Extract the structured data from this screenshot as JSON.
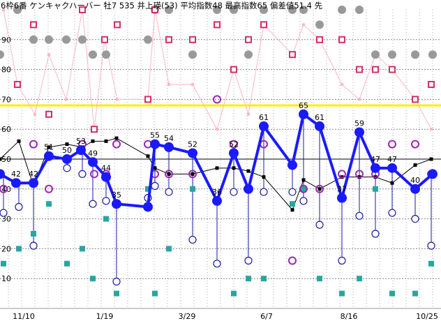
{
  "header": "6枠6番 ケンキャクハーバー 牡7 535 井上瑛(53) 平均指数48 最高指数65 偏差値51.4 先",
  "chart_data": {
    "type": "line",
    "title": "6枠6番 ケンキャクハーバー 牡7 535 井上瑛(53) 平均指数48 最高指数65 偏差値51.4 先",
    "ylim": [
      0,
      100
    ],
    "y_ticks": [
      10,
      20,
      30,
      40,
      50,
      60,
      70,
      80,
      90
    ],
    "x_tick_labels": [
      "11/10",
      "1/19",
      "3/29",
      "6/7",
      "8/16",
      "10/25"
    ],
    "reference_line": 68,
    "grid": true,
    "colors": {
      "main": "#1a1aff",
      "black": "#000000",
      "pink_square": "#d0306a",
      "gray_circle": "#999999",
      "teal_square": "#2aa5a0",
      "purple_circle": "#9c27b0",
      "open_circle": "#1a1aa0",
      "pink_line": "#ffb6c1",
      "yellow_line": "#ffee00"
    },
    "series": [
      {
        "kind": "main_blue",
        "x": [
          0,
          23,
          48,
          70,
          96,
          116,
          133,
          152,
          167,
          212,
          222,
          242,
          276,
          311,
          335,
          356,
          378,
          419,
          435,
          458,
          490,
          515,
          538,
          562,
          595,
          620
        ],
        "y": [
          45,
          42,
          42,
          51,
          50,
          53,
          49,
          44,
          35,
          34,
          55,
          54,
          52,
          36,
          52,
          40,
          61,
          48,
          65,
          61,
          37,
          59,
          47,
          47,
          40,
          45
        ],
        "labels": [
          "",
          "42",
          "42",
          "51",
          "50",
          "53",
          "49",
          "44",
          "35",
          "",
          "55",
          "54",
          "52",
          "36",
          "52",
          "",
          "61",
          "",
          "65",
          "61",
          "37",
          "59",
          "47",
          "47",
          "40",
          ""
        ]
      },
      {
        "kind": "black_line",
        "x": [
          0,
          27,
          48,
          70,
          96,
          118,
          133,
          152,
          167,
          212,
          222,
          242,
          276,
          311,
          335,
          356,
          378,
          419,
          435,
          458,
          490,
          515,
          538,
          562,
          595,
          618
        ],
        "y": [
          50,
          56,
          41,
          54,
          55,
          54,
          56,
          56,
          57,
          51,
          47,
          45,
          45,
          47,
          47,
          46,
          44,
          33,
          43,
          40,
          44,
          44,
          44,
          42,
          48,
          50
        ]
      },
      {
        "kind": "pink_line",
        "x": [
          5,
          25,
          50,
          70,
          95,
          118,
          135,
          150,
          168,
          212,
          222,
          242,
          276,
          311,
          335,
          356,
          378,
          419,
          435,
          458,
          490,
          515,
          538,
          562,
          595,
          618
        ],
        "y": [
          100,
          75,
          65,
          85,
          70,
          100,
          60,
          90,
          70,
          70,
          100,
          75,
          75,
          60,
          80,
          65,
          95,
          85,
          95,
          90,
          75,
          70,
          85,
          80,
          70,
          60
        ]
      },
      {
        "kind": "pink_square",
        "x": [
          25,
          48,
          70,
          118,
          135,
          150,
          168,
          212,
          222,
          242,
          276,
          311,
          335,
          356,
          378,
          419,
          458,
          490,
          515,
          538,
          562,
          595,
          618
        ],
        "y": [
          75,
          95,
          65,
          100,
          60,
          90,
          95,
          70,
          100,
          90,
          90,
          95,
          80,
          90,
          95,
          85,
          90,
          90,
          80,
          80,
          80,
          70,
          75
        ]
      },
      {
        "kind": "gray_circle",
        "x": [
          0,
          25,
          48,
          70,
          95,
          118,
          133,
          152,
          212,
          222,
          242,
          276,
          311,
          335,
          356,
          378,
          419,
          435,
          458,
          490,
          515,
          538,
          562,
          595,
          620
        ],
        "y": [
          85,
          100,
          90,
          90,
          90,
          90,
          85,
          85,
          90,
          100,
          100,
          85,
          100,
          100,
          85,
          100,
          100,
          100,
          95,
          100,
          100,
          85,
          85,
          85,
          85
        ]
      },
      {
        "kind": "teal_square",
        "x": [
          5,
          27,
          48,
          70,
          96,
          118,
          133,
          152,
          167,
          212,
          222,
          242,
          276,
          311,
          335,
          356,
          378,
          419,
          435,
          458,
          490,
          515,
          538,
          562,
          595,
          618
        ],
        "y": [
          15,
          20,
          25,
          35,
          15,
          20,
          10,
          30,
          5,
          40,
          5,
          20,
          40,
          15,
          5,
          10,
          10,
          35,
          40,
          10,
          5,
          10,
          40,
          5,
          5,
          15
        ]
      },
      {
        "kind": "purple_circle",
        "x": [
          5,
          48,
          70,
          96,
          118,
          135,
          152,
          167,
          212,
          222,
          242,
          276,
          311,
          335,
          356,
          378,
          419,
          435,
          458,
          490,
          515,
          538,
          562,
          595,
          618
        ],
        "y": [
          40,
          55,
          40,
          50,
          55,
          45,
          45,
          55,
          55,
          45,
          45,
          45,
          70,
          55,
          40,
          55,
          16,
          40,
          40,
          45,
          45,
          45,
          55,
          55,
          45
        ]
      },
      {
        "kind": "open_circle",
        "x": [
          5,
          27,
          48,
          96,
          118,
          133,
          152,
          167,
          212,
          222,
          242,
          276,
          311,
          335,
          356,
          378,
          419,
          435,
          458,
          490,
          515,
          538,
          562,
          595,
          618
        ],
        "y": [
          32,
          34,
          21,
          47,
          45,
          35,
          36,
          9,
          37,
          41,
          39,
          23,
          15,
          39,
          16,
          39,
          39,
          36,
          28,
          16,
          31,
          25,
          32,
          30,
          21
        ]
      }
    ]
  }
}
